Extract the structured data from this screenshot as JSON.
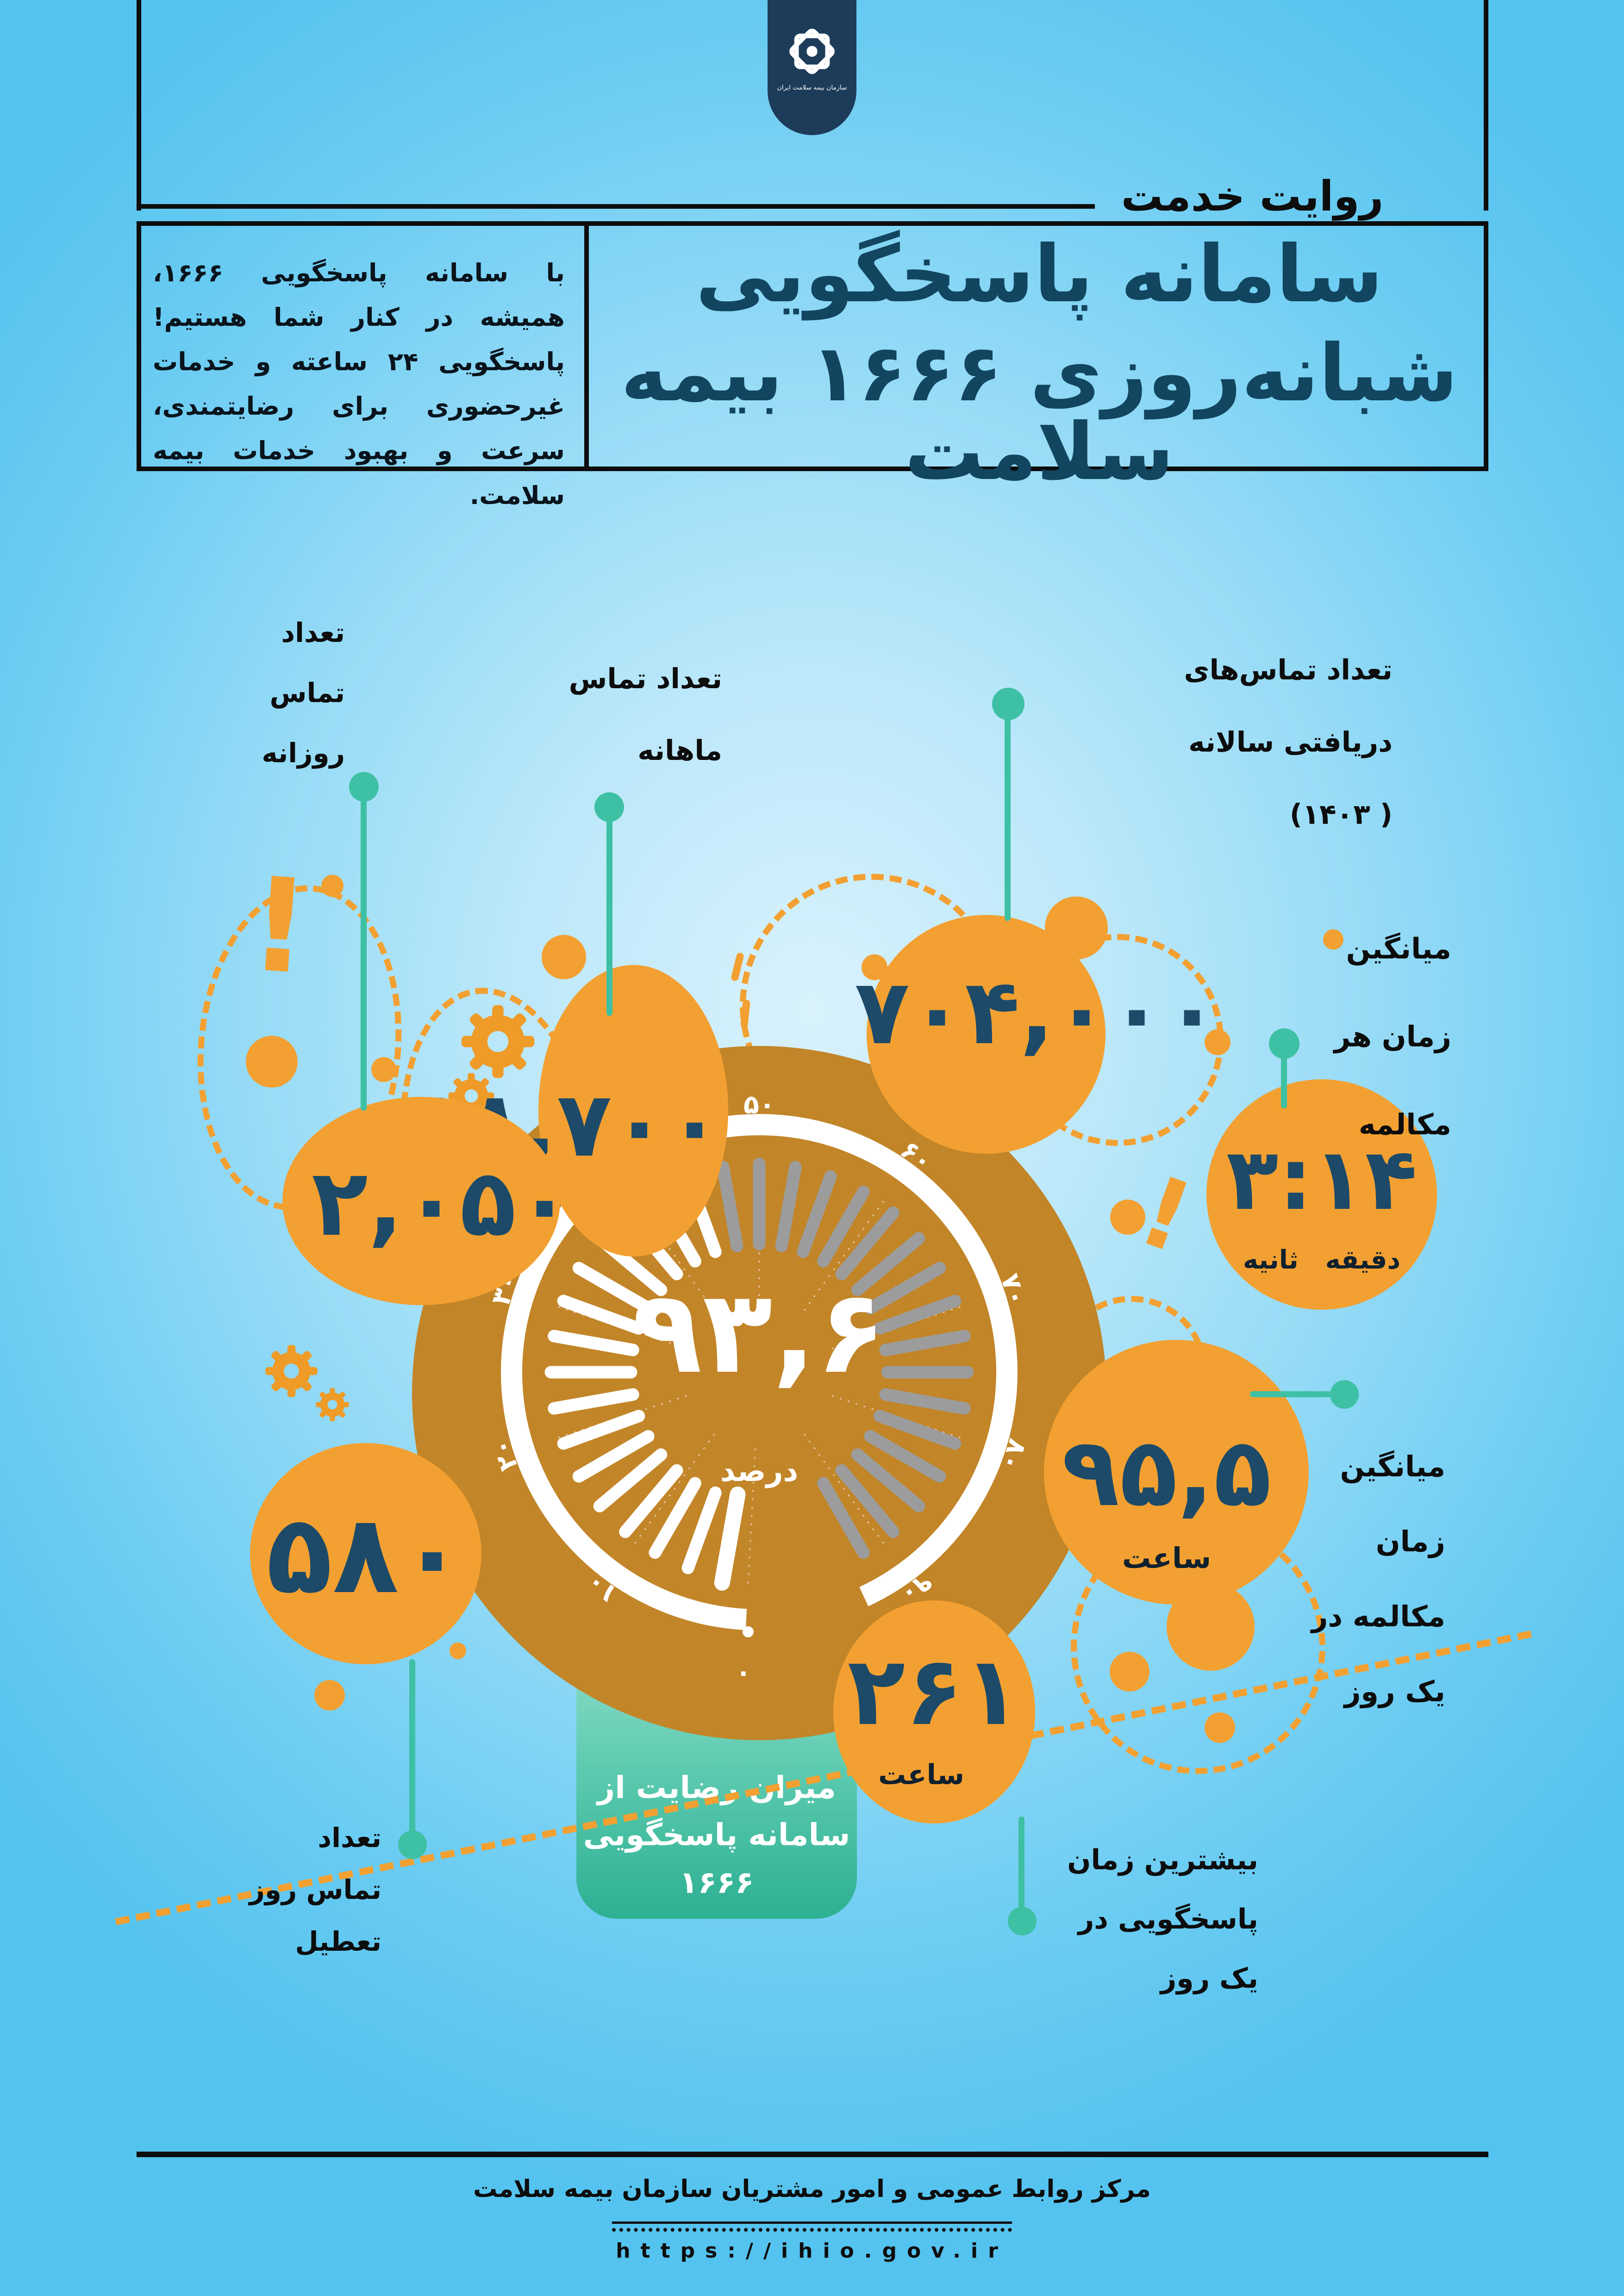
{
  "colors": {
    "background_blue": "#7fd2f3",
    "accent_orange": "#f3a032",
    "gauge_body_orange": "#c28528",
    "number_navy": "#1c4a68",
    "title_navy": "#12455f",
    "banner_navy": "#1d3c5a",
    "teal": "#3ec0a4",
    "tick_gray": "#9c9c9c",
    "tick_white": "#ffffff"
  },
  "header": {
    "org_name": "سازمان بیمه سلامت ایران",
    "kicker": "روایت خدمت",
    "title_line1": "سامانه پاسخگویی",
    "title_line2": "شبانه‌روزی ۱۶۶۶ بیمه سلامت",
    "description": "با سامانه پاسخگویی ۱۶۶۶، همیشه در کنار شما هستیم! پاسخگویی ۲۴ ساعته و خدمات غیرحضوری برای رضایتمندی، سرعت و بهبود خدمات بیمه سلامت."
  },
  "stats": {
    "monthly": {
      "value": "۵۸,۷۰۰",
      "label_lines": [
        "تعداد تماس",
        "ماهانه"
      ]
    },
    "daily": {
      "value": "۲,۰۵۰",
      "label_lines": [
        "تعداد",
        "تماس",
        "روزانه"
      ]
    },
    "yearly": {
      "value": "۷۰۴,۰۰۰",
      "label_lines": [
        "تعداد تماس‌های",
        "دریافتی سالانه",
        "( ۱۴۰۳)"
      ]
    },
    "avg_call": {
      "value": "۳:۱۴",
      "unit_minutes": "دقیقه",
      "unit_seconds": "ثانیه",
      "label_lines": [
        "میانگین",
        "زمان هر",
        "مکالمه"
      ]
    },
    "talk_per_day": {
      "value": "۹۵,۵",
      "unit": "ساعت",
      "label_lines": [
        "میانگین",
        "زمان",
        "مکالمه در",
        "یک روز"
      ]
    },
    "max_per_day": {
      "value": "۲۶۱",
      "unit": "ساعت",
      "label_lines": [
        "بیشترین زمان",
        "پاسخگویی در",
        "یک روز"
      ]
    },
    "holiday": {
      "value": "۵۸۰",
      "label_lines": [
        "تعداد",
        "تماس روز",
        "تعطیل"
      ]
    }
  },
  "gauge": {
    "value_display": "۹۳,۶",
    "unit": "درصد",
    "caption_lines": [
      "میزان رضایت از",
      "سامانه پاسخگویی",
      "۱۶۶۶"
    ],
    "scale_labels": [
      {
        "text": "۰",
        "angle": -93,
        "r": 655
      },
      {
        "text": "۱۰",
        "angle": -126
      },
      {
        "text": "۲۰",
        "angle": -162
      },
      {
        "text": "۳۰",
        "angle": 162
      },
      {
        "text": "۴۰",
        "angle": 126
      },
      {
        "text": "۵۰",
        "angle": 90
      },
      {
        "text": "۶۰",
        "angle": 54
      },
      {
        "text": "۷۰",
        "angle": 18
      },
      {
        "text": "۸۰",
        "angle": -18
      },
      {
        "text": "۹۰",
        "angle": -54
      }
    ]
  },
  "chart_data": {
    "type": "gauge",
    "title": "میزان رضایت از سامانه پاسخگویی ۱۶۶۶",
    "value": 93.6,
    "unit": "درصد",
    "min": 0,
    "max": 100,
    "axis_ticks": [
      0,
      10,
      20,
      30,
      40,
      50,
      60,
      70,
      80,
      90
    ],
    "stats": [
      {
        "label": "تعداد تماس روزانه",
        "value": 2050,
        "display": "۲,۰۵۰"
      },
      {
        "label": "تعداد تماس ماهانه",
        "value": 58700,
        "display": "۵۸,۷۰۰"
      },
      {
        "label": "تعداد تماس‌های دریافتی سالانه (۱۴۰۳)",
        "value": 704000,
        "display": "۷۰۴,۰۰۰"
      },
      {
        "label": "میانگین زمان هر مکالمه",
        "value": "3:14",
        "display": "۳:۱۴",
        "unit": "دقیقه:ثانیه"
      },
      {
        "label": "میانگین زمان مکالمه در یک روز",
        "value": 95.5,
        "display": "۹۵,۵",
        "unit": "ساعت"
      },
      {
        "label": "بیشترین زمان پاسخگویی در یک روز",
        "value": 261,
        "display": "۲۶۱",
        "unit": "ساعت"
      },
      {
        "label": "تعداد تماس روز تعطیل",
        "value": 580,
        "display": "۵۸۰"
      }
    ]
  },
  "footer": {
    "org": "مرکز روابط عمومی و امور مشتریان سازمان بیمه سلامت",
    "url": "https://ihio.gov.ir"
  }
}
